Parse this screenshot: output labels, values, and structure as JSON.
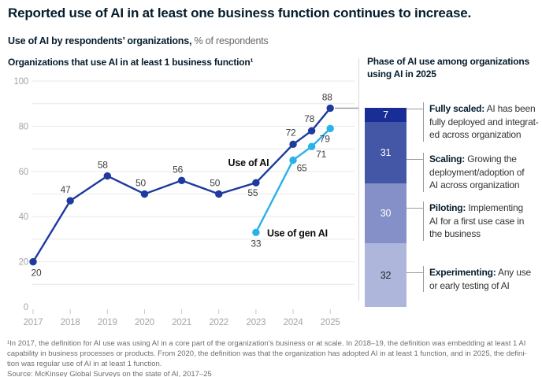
{
  "header": {
    "title": "Reported use of AI in at least one business function continues to increase.",
    "subtitle_bold": "Use of AI by respondents’ organizations,",
    "subtitle_rest": " % of respondents"
  },
  "chart_data": [
    {
      "type": "line",
      "title": "Organizations that use AI in at least 1 business function¹",
      "x_labels": [
        "2017",
        "2018",
        "2019",
        "2020",
        "2021",
        "2022",
        "2023",
        "2024",
        "2025"
      ],
      "y_ticks": [
        0,
        20,
        40,
        60,
        80,
        100
      ],
      "ylim": [
        0,
        100
      ],
      "grid": "horizontal gridlines every 10 units",
      "legend": "inline series labels",
      "series": [
        {
          "name": "Use of AI",
          "color": "#1e3a9e",
          "x": [
            0,
            1,
            2,
            3,
            4,
            5,
            6,
            7,
            7.5,
            8
          ],
          "values": [
            20,
            47,
            58,
            50,
            56,
            50,
            55,
            72,
            78,
            88
          ],
          "label_offsets": [
            [
              4,
              18
            ],
            [
              -6,
              -10
            ],
            [
              -6,
              -10
            ],
            [
              -5,
              -10
            ],
            [
              -5,
              -10
            ],
            [
              -5,
              -10
            ],
            [
              -4,
              17
            ],
            [
              -3,
              -11
            ],
            [
              -3,
              -11
            ],
            [
              -4,
              -10
            ]
          ]
        },
        {
          "name": "Use of gen AI",
          "color": "#29b1e9",
          "x": [
            6,
            7,
            7.5,
            8
          ],
          "values": [
            33,
            65,
            71,
            79
          ],
          "label_offsets": [
            [
              0,
              18
            ],
            [
              11,
              14
            ],
            [
              12,
              14
            ],
            [
              -7,
              17
            ]
          ]
        }
      ],
      "annotations": [
        {
          "text": "Use of AI",
          "x": 5.8,
          "y": 62.3,
          "anchor": "middle"
        },
        {
          "text": "Use of gen AI",
          "x": 6.3,
          "y": 31.2,
          "anchor": "start"
        }
      ]
    },
    {
      "type": "bar",
      "subtype": "single-stacked-column",
      "title_line1": "Phase of AI use among organizations",
      "title_line2": "using AI in 2025",
      "alignment_note": "column top aligns with the 88% point of the line chart; column spans 0–100 of its own scale",
      "stack": [
        {
          "category": "Fully scaled",
          "value": 7,
          "color": "#182d96",
          "number_color": "#ffffff",
          "term": "Fully scaled:",
          "desc_lines": [
            "Fully scaled: AI has been",
            "fully deployed and integrat-",
            "ed across organization"
          ]
        },
        {
          "category": "Scaling",
          "value": 31,
          "color": "#4457a6",
          "number_color": "#ffffff",
          "term": "Scaling:",
          "desc_lines": [
            "Scaling: Growing the",
            "deployment/adoption of",
            "AI across organization"
          ]
        },
        {
          "category": "Piloting",
          "value": 30,
          "color": "#8590c8",
          "number_color": "#ffffff",
          "term": "Piloting:",
          "desc_lines": [
            "Piloting: Implementing",
            "AI for a first use case in",
            "the business"
          ]
        },
        {
          "category": "Experimenting",
          "value": 32,
          "color": "#aeb6dc",
          "number_color": "#262626",
          "term": "Experimenting:",
          "desc_lines": [
            "Experimenting: Any use",
            "or early testing of AI"
          ]
        }
      ]
    }
  ],
  "footnote": {
    "lines": [
      "¹In 2017, the definition for AI use was using AI in a core part of the organization’s business or at scale. In 2018–19, the definition was embedding at least 1 AI",
      "capability in business processes or products. From 2020, the definition was that the organization has adopted AI in at least 1 function, and in 2025, the defini-",
      "tion was regular use of AI in at least 1 function.",
      "Source: McKinsey Global Surveys on the state of AI, 2017–25"
    ]
  },
  "colors": {
    "use_of_ai_line": "#1e3a9e",
    "use_of_gen_ai_line": "#29b1e9",
    "gridline": "#e9e9e9",
    "axis_label": "#a5a5a5",
    "value_label": "#3d3d3d",
    "divider": "#d6d6d6",
    "leader": "#9a9a9a"
  }
}
